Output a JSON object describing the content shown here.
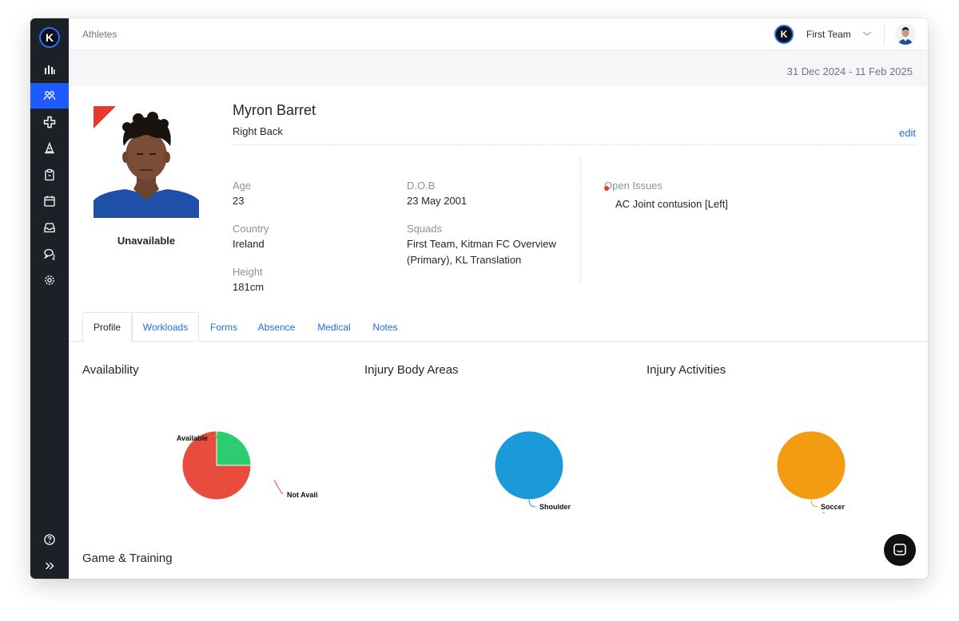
{
  "sidebar": {
    "logo": "K",
    "items": [
      {
        "icon": "bar-chart-icon"
      },
      {
        "icon": "athletes-icon",
        "active": true
      },
      {
        "icon": "medical-cross-icon"
      },
      {
        "icon": "cone-icon"
      },
      {
        "icon": "clipboard-icon"
      },
      {
        "icon": "calendar-icon"
      },
      {
        "icon": "inbox-icon"
      },
      {
        "icon": "messages-icon"
      },
      {
        "icon": "settings-icon"
      },
      {
        "icon": "help-icon"
      },
      {
        "icon": "expand-icon"
      }
    ]
  },
  "topbar": {
    "breadcrumb": "Athletes",
    "team_logo": "K",
    "team_name": "First Team"
  },
  "date_range": "31 Dec 2024 - 11 Feb 2025",
  "athlete": {
    "name": "Myron Barret",
    "position": "Right Back",
    "status": "Unavailable",
    "edit_label": "edit",
    "age_label": "Age",
    "age": "23",
    "dob_label": "D.O.B",
    "dob": "23 May 2001",
    "country_label": "Country",
    "country": "Ireland",
    "squads_label": "Squads",
    "squads_line1": "First Team, Kitman FC Overview",
    "squads_line2": "(Primary), KL Translation",
    "height_label": "Height",
    "height": "181cm",
    "open_issues_label": "Open Issues",
    "open_issue": "AC Joint contusion [Left]"
  },
  "tabs": [
    {
      "label": "Profile",
      "active": true
    },
    {
      "label": "Workloads"
    },
    {
      "label": "Forms"
    },
    {
      "label": "Absence"
    },
    {
      "label": "Medical"
    },
    {
      "label": "Notes"
    }
  ],
  "sections": {
    "availability": "Availability",
    "body_areas": "Injury Body Areas",
    "activities": "Injury Activities",
    "game_training": "Game & Training"
  },
  "colors": {
    "accent": "#1e5bff",
    "link": "#1e6fd9",
    "unavailable": "#e8392f",
    "available": "#2ecc71",
    "body_area": "#1a9ad9",
    "activity": "#f39c12"
  },
  "chart_data": [
    {
      "type": "pie",
      "title": "Availability",
      "labels": [
        "Available",
        "Not Available"
      ],
      "values": [
        25,
        75
      ],
      "colors": [
        "#2ecc71",
        "#e74c3c"
      ]
    },
    {
      "type": "pie",
      "title": "Injury Body Areas",
      "labels": [
        "Shoulder"
      ],
      "values": [
        100
      ],
      "colors": [
        "#1a9ad9"
      ]
    },
    {
      "type": "pie",
      "title": "Injury Activities",
      "labels": [
        "Soccer Game"
      ],
      "values": [
        100
      ],
      "colors": [
        "#f39c12"
      ]
    }
  ]
}
